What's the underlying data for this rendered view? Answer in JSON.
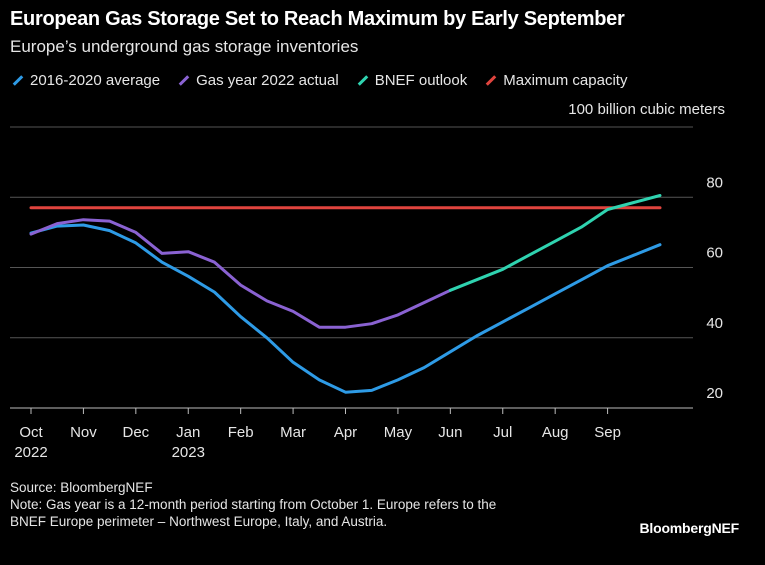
{
  "chart_data": {
    "type": "line",
    "title": "European Gas Storage Set to Reach Maximum by Early September",
    "subtitle": "Europe’s underground gas storage inventories",
    "ylabel": "100 billion cubic meters",
    "ylim": [
      20,
      100
    ],
    "xlim": [
      0,
      12
    ],
    "yticks": [
      20,
      40,
      60,
      80
    ],
    "xticks": [
      {
        "pos": 0,
        "label": "Oct",
        "sub": "2022"
      },
      {
        "pos": 1,
        "label": "Nov",
        "sub": ""
      },
      {
        "pos": 2,
        "label": "Dec",
        "sub": ""
      },
      {
        "pos": 3,
        "label": "Jan",
        "sub": "2023"
      },
      {
        "pos": 4,
        "label": "Feb",
        "sub": ""
      },
      {
        "pos": 5,
        "label": "Mar",
        "sub": ""
      },
      {
        "pos": 6,
        "label": "Apr",
        "sub": ""
      },
      {
        "pos": 7,
        "label": "May",
        "sub": ""
      },
      {
        "pos": 8,
        "label": "Jun",
        "sub": ""
      },
      {
        "pos": 9,
        "label": "Jul",
        "sub": ""
      },
      {
        "pos": 10,
        "label": "Aug",
        "sub": ""
      },
      {
        "pos": 11,
        "label": "Sep",
        "sub": ""
      }
    ],
    "series": [
      {
        "name": "2016-2020 average",
        "color": "#2e9be6",
        "points": [
          [
            0,
            69.8
          ],
          [
            0.5,
            71.8
          ],
          [
            1,
            72.1
          ],
          [
            1.5,
            70.5
          ],
          [
            2,
            67
          ],
          [
            2.5,
            61.5
          ],
          [
            3,
            57.5
          ],
          [
            3.5,
            53
          ],
          [
            4,
            46
          ],
          [
            4.5,
            40
          ],
          [
            5,
            33
          ],
          [
            5.5,
            28
          ],
          [
            6,
            24.5
          ],
          [
            6.5,
            25
          ],
          [
            7,
            28
          ],
          [
            7.5,
            31.5
          ],
          [
            8,
            36
          ],
          [
            8.5,
            40.5
          ],
          [
            9,
            44.5
          ],
          [
            9.5,
            48.5
          ],
          [
            10,
            52.5
          ],
          [
            10.5,
            56.5
          ],
          [
            11,
            60.5
          ],
          [
            11.5,
            63.5
          ],
          [
            12,
            66.5
          ]
        ]
      },
      {
        "name": "Gas year 2022 actual",
        "color": "#8a62d2",
        "points": [
          [
            0,
            69.5
          ],
          [
            0.5,
            72.5
          ],
          [
            1,
            73.6
          ],
          [
            1.5,
            73.2
          ],
          [
            2,
            70
          ],
          [
            2.5,
            64
          ],
          [
            3,
            64.5
          ],
          [
            3.5,
            61.5
          ],
          [
            4,
            55
          ],
          [
            4.5,
            50.5
          ],
          [
            5,
            47.5
          ],
          [
            5.5,
            43
          ],
          [
            6,
            43
          ],
          [
            6.5,
            44
          ],
          [
            7,
            46.5
          ],
          [
            7.5,
            50
          ],
          [
            8,
            53.5
          ]
        ]
      },
      {
        "name": "BNEF outlook",
        "color": "#2fd3b0",
        "points": [
          [
            8,
            53.5
          ],
          [
            8.5,
            56.5
          ],
          [
            9,
            59.5
          ],
          [
            9.5,
            63.5
          ],
          [
            10,
            67.5
          ],
          [
            10.5,
            71.5
          ],
          [
            11,
            76.5
          ],
          [
            11.5,
            78.5
          ],
          [
            12,
            80.5
          ]
        ]
      },
      {
        "name": "Maximum capacity",
        "color": "#e0443e",
        "points": [
          [
            0,
            77
          ],
          [
            12,
            77
          ]
        ]
      }
    ]
  },
  "footer": {
    "source": "Source: BloombergNEF",
    "note_line1": "Note: Gas year is a 12-month period starting from October 1. Europe refers to the",
    "note_line2": "BNEF Europe perimeter – Northwest Europe, Italy, and Austria.",
    "brand": "BloombergNEF"
  }
}
